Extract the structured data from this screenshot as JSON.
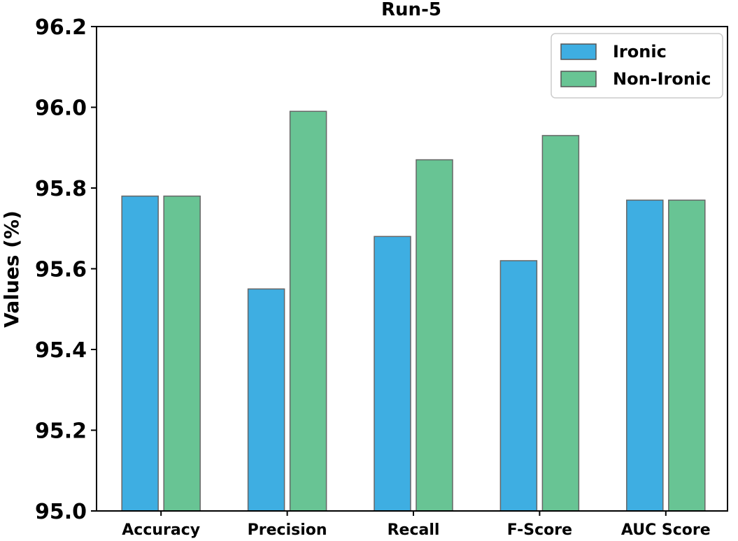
{
  "chart_data": {
    "type": "bar",
    "title": "Run-5",
    "xlabel": "",
    "ylabel": "Values (%)",
    "ylim": [
      95.0,
      96.2
    ],
    "yticks": [
      95.0,
      95.2,
      95.4,
      95.6,
      95.8,
      96.0,
      96.2
    ],
    "ytick_labels": [
      "95.0",
      "95.2",
      "95.4",
      "95.6",
      "95.8",
      "96.0",
      "96.2"
    ],
    "categories": [
      "Accuracy",
      "Precision",
      "Recall",
      "F-Score",
      "AUC Score"
    ],
    "series": [
      {
        "name": "Ironic",
        "color": "#3eaee2",
        "values": [
          95.78,
          95.55,
          95.68,
          95.62,
          95.77
        ]
      },
      {
        "name": "Non-Ironic",
        "color": "#68c494",
        "values": [
          95.78,
          95.99,
          95.87,
          95.93,
          95.77
        ]
      }
    ],
    "legend": {
      "position": "top-right"
    },
    "grid": false
  }
}
